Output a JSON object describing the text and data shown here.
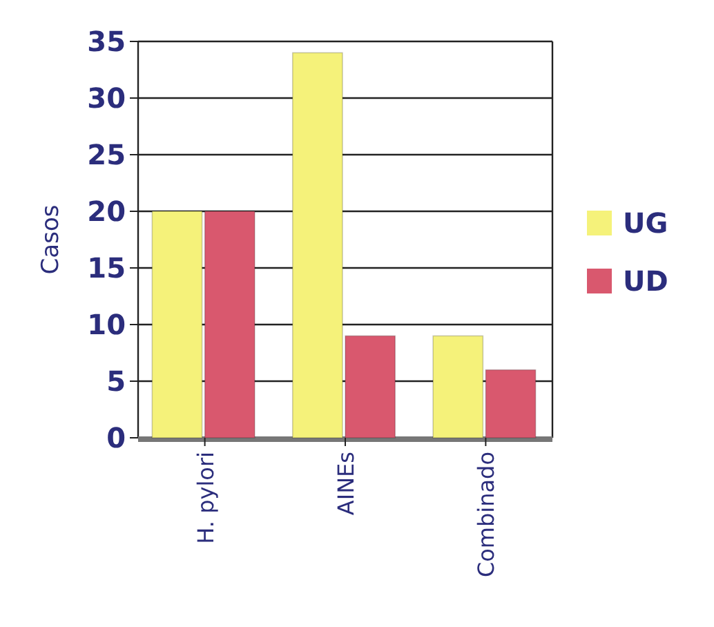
{
  "chart_data": {
    "type": "bar",
    "ylabel": "Casos",
    "categories": [
      "H. pylori",
      "AINEs",
      "Combinado"
    ],
    "series": [
      {
        "name": "UG",
        "color": "#f5f27a",
        "values": [
          20,
          34,
          9
        ]
      },
      {
        "name": "UD",
        "color": "#d9586e",
        "values": [
          20,
          9,
          6
        ]
      }
    ],
    "ylim": [
      0,
      35
    ],
    "yticks": [
      0,
      5,
      10,
      15,
      20,
      25,
      30,
      35
    ],
    "grid": "y",
    "legend": "right"
  }
}
